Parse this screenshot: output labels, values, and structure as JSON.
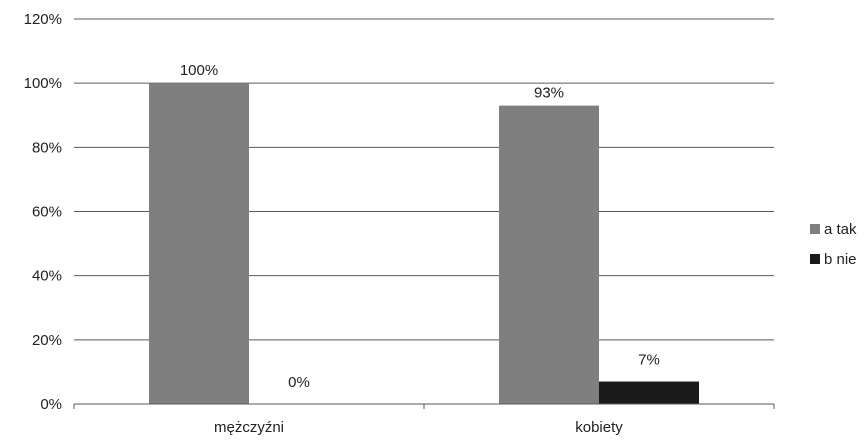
{
  "chart_data": {
    "type": "bar",
    "categories": [
      "mężczyźni",
      "kobiety"
    ],
    "series": [
      {
        "name": "a tak",
        "values": [
          100,
          93
        ],
        "labels": [
          "100%",
          "93%"
        ],
        "color": "#7f7f7f"
      },
      {
        "name": "b nie",
        "values": [
          0,
          7
        ],
        "labels": [
          "0%",
          "7%"
        ],
        "color": "#1a1a1a"
      }
    ],
    "ylim": [
      0,
      120
    ],
    "y_ticks": [
      "0%",
      "20%",
      "40%",
      "60%",
      "80%",
      "100%",
      "120%"
    ],
    "grid": true,
    "legend_position": "right"
  }
}
